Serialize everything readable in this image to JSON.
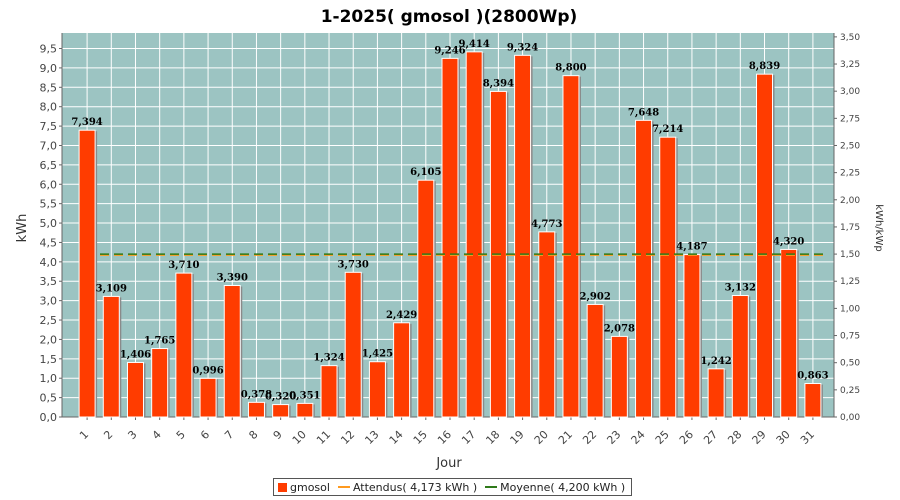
{
  "colors": {
    "plot_bg": "#9cc4c2",
    "bar": "#ff3c00",
    "bar_shadow": "#8a8a8a",
    "expected": "#ff9a1f",
    "average": "#2f7a1a",
    "grid": "#ffffff"
  },
  "chart_data": {
    "type": "bar",
    "title": "1-2025( gmosol )(2800Wp)",
    "xlabel": "Jour",
    "ylabel": "kWh",
    "ylabel_right": "kWh/kWp",
    "ylim": [
      0,
      9.9
    ],
    "ylim_right": [
      0,
      3.5357
    ],
    "yticks": [
      "0,0",
      "0,5",
      "1,0",
      "1,5",
      "2,0",
      "2,5",
      "3,0",
      "3,5",
      "4,0",
      "4,5",
      "5,0",
      "5,5",
      "6,0",
      "6,5",
      "7,0",
      "7,5",
      "8,0",
      "8,5",
      "9,0",
      "9,5"
    ],
    "yticks_right": [
      "0,00",
      "0,25",
      "0,50",
      "0,75",
      "1,00",
      "1,25",
      "1,50",
      "1,75",
      "2,00",
      "2,25",
      "2,50",
      "2,75",
      "3,00",
      "3,25",
      "3,50"
    ],
    "categories": [
      "1",
      "2",
      "3",
      "4",
      "5",
      "6",
      "7",
      "8",
      "9",
      "10",
      "11",
      "12",
      "13",
      "14",
      "15",
      "16",
      "17",
      "18",
      "19",
      "20",
      "21",
      "22",
      "23",
      "24",
      "25",
      "26",
      "27",
      "28",
      "29",
      "30",
      "31"
    ],
    "series": [
      {
        "name": "gmosol",
        "values": [
          7.394,
          3.109,
          1.406,
          1.765,
          3.71,
          0.996,
          3.39,
          0.378,
          0.32,
          0.351,
          1.324,
          3.73,
          1.425,
          2.429,
          6.105,
          9.246,
          9.414,
          8.394,
          9.324,
          4.773,
          8.8,
          2.902,
          2.078,
          7.648,
          7.214,
          4.187,
          1.242,
          3.132,
          8.839,
          4.32,
          0.863
        ],
        "labels": [
          "7,394",
          "3,109",
          "1,406",
          "1,765",
          "3,710",
          "0,996",
          "3,390",
          "0,378",
          "0,320",
          "0,351",
          "1,324",
          "3,730",
          "1,425",
          "2,429",
          "6,105",
          "9,246",
          "9,414",
          "8,394",
          "9,324",
          "4,773",
          "8,800",
          "2,902",
          "2,078",
          "7,648",
          "7,214",
          "4,187",
          "1,242",
          "3,132",
          "8,839",
          "4,320",
          "0,863"
        ]
      }
    ],
    "expected_value": 4.173,
    "average_value": 4.2,
    "legend": [
      {
        "name": "gmosol",
        "type": "box"
      },
      {
        "name": "Attendus( 4,173 kWh )",
        "type": "line"
      },
      {
        "name": "Moyenne( 4,200 kWh )",
        "type": "line"
      }
    ],
    "legend_position": "bottom",
    "grid": true
  }
}
